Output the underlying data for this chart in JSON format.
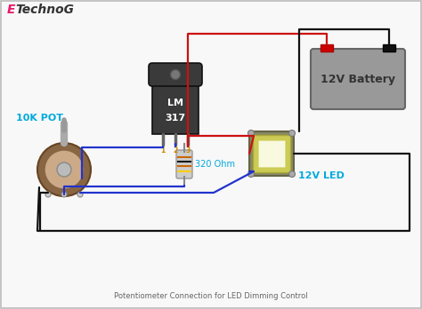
{
  "background_color": "#f8f8f8",
  "border_color": "#bbbbbb",
  "title_E": "E",
  "title_rest": "TechnoG",
  "title_E_color": "#e8186a",
  "title_rest_color": "#333333",
  "subtitle": "Potentiometer Connection for LED Dimming Control",
  "subtitle_color": "#666666",
  "label_pot": "10K POT",
  "label_res": "320 Ohm",
  "label_led": "12V LED",
  "label_bat": "12V Battery",
  "label_color": "#00aadd",
  "pin_labels": [
    "1",
    "2",
    "3"
  ],
  "pin_color": "#cc8800",
  "wire_red": "#cc1111",
  "wire_blue": "#2233cc",
  "wire_black": "#111111",
  "lm317_body": "#3a3a3a",
  "lm317_text": "#ffffff",
  "res_body": "#cccccc",
  "res_band1": "#cc4400",
  "res_band2": "#cc4400",
  "res_band3": "#886600",
  "res_band4": "#ccaa00",
  "bat_body": "#999999",
  "bat_text": "#333333",
  "bat_pos": "#cc0000",
  "bat_neg": "#111111",
  "pot_outer": "#886644",
  "pot_mid": "#aaaaaa",
  "pot_shaft": "#bbbbbb",
  "led_outer": "#888866",
  "led_inner": "#dddd44",
  "led_bright": "#ffffee"
}
